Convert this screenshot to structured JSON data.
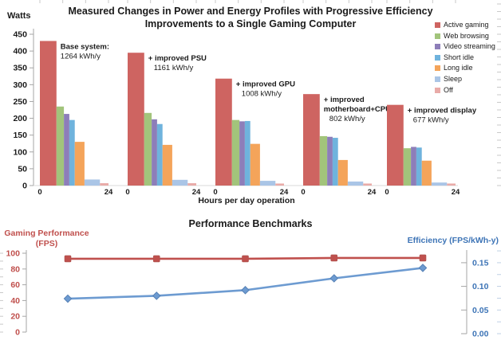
{
  "page": {
    "background": "#FFFFFF"
  },
  "chart_data": [
    {
      "type": "bar",
      "title_line1": "Measured Changes in Power and Energy Profiles with Progressive Efficiency",
      "title_line2": "Improvements to a Single Gaming Computer",
      "ylabel": "Watts",
      "xlabel": "Hours per day operation",
      "ylim": [
        0,
        450
      ],
      "yticks": [
        0,
        50,
        100,
        150,
        200,
        250,
        300,
        350,
        400,
        450
      ],
      "x_hours_span": 24,
      "xtick_labels": [
        "0",
        "24"
      ],
      "grid": false,
      "legend_position": "right",
      "modes": [
        {
          "name": "Active gaming",
          "color": "#CE6461",
          "hours": 5.8
        },
        {
          "name": "Web browsing",
          "color": "#A2C47B",
          "hours": 2.6
        },
        {
          "name": "Video streaming",
          "color": "#8D7EB9",
          "hours": 1.9
        },
        {
          "name": "Short idle",
          "color": "#6FB3DD",
          "hours": 1.9
        },
        {
          "name": "Long idle",
          "color": "#F4A45A",
          "hours": 3.4
        },
        {
          "name": "Sleep",
          "color": "#AAC5E6",
          "hours": 5.4
        },
        {
          "name": "Off",
          "color": "#E9ABA8",
          "hours": 3.0
        }
      ],
      "groups": [
        {
          "label_lines": [
            "Base system:"
          ],
          "energy_label": "1264 kWh/y",
          "watts": [
            430,
            235,
            213,
            195,
            130,
            18,
            7
          ]
        },
        {
          "label_lines": [
            "+ improved PSU"
          ],
          "energy_label": "1161 kWh/y",
          "watts": [
            395,
            216,
            197,
            183,
            121,
            17,
            7
          ]
        },
        {
          "label_lines": [
            "+ improved GPU"
          ],
          "energy_label": "1008 kWh/y",
          "watts": [
            318,
            195,
            191,
            192,
            124,
            14,
            6
          ]
        },
        {
          "label_lines": [
            "+ improved",
            "motherboard+CPU"
          ],
          "energy_label": "802 kWh/y",
          "watts": [
            272,
            147,
            145,
            142,
            76,
            12,
            6
          ]
        },
        {
          "label_lines": [
            "+ improved display"
          ],
          "energy_label": "677 kWh/y",
          "watts": [
            240,
            111,
            115,
            113,
            74,
            9,
            6
          ]
        }
      ]
    },
    {
      "type": "line",
      "title": "Performance Benchmarks",
      "grid": false,
      "left_axis": {
        "label": "Gaming Performance (FPS)",
        "color": "#C0504D",
        "ticks": [
          0,
          20,
          40,
          60,
          80,
          100
        ],
        "range": [
          0,
          100
        ]
      },
      "right_axis": {
        "label": "Efficiency (FPS/kWh-y)",
        "color": "#3D74B6",
        "ticks": [
          "0.00",
          "0.05",
          "0.10",
          "0.15"
        ],
        "range": [
          0,
          0.15
        ]
      },
      "series": [
        {
          "name": "Gaming Performance (FPS)",
          "axis": "left",
          "color": "#C0504D",
          "marker": "square",
          "values": [
            93,
            93,
            93,
            94,
            94
          ]
        },
        {
          "name": "Efficiency (FPS/kWh-y)",
          "axis": "right",
          "color": "#6D9BD1",
          "marker": "diamond",
          "values": [
            0.074,
            0.08,
            0.092,
            0.117,
            0.139
          ]
        }
      ]
    }
  ]
}
